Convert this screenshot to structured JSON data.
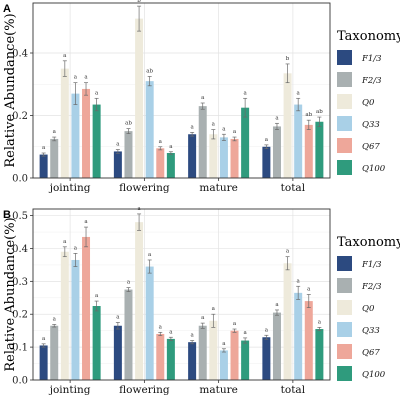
{
  "chart_data": [
    {
      "panel": "A",
      "type": "bar",
      "categories": [
        "jointing",
        "flowering",
        "mature",
        "total"
      ],
      "ylabel": "Relative Abundance(%)",
      "yticks": [
        "0.0",
        "0.2",
        "0.4"
      ],
      "ylim": [
        0,
        0.56
      ],
      "legend_title": "Taxonomy",
      "legend_position": "right",
      "grid": true,
      "series": [
        {
          "name": "F1/3",
          "color": "#2c4a80",
          "values": [
            0.075,
            0.085,
            0.14,
            0.1
          ],
          "errors": [
            0.005,
            0.006,
            0.006,
            0.006
          ],
          "letters": [
            "a",
            "a",
            "a",
            "a"
          ]
        },
        {
          "name": "F2/3",
          "color": "#a9b0b1",
          "values": [
            0.125,
            0.15,
            0.23,
            0.165
          ],
          "errors": [
            0.006,
            0.008,
            0.01,
            0.01
          ],
          "letters": [
            "a",
            "ab",
            "a",
            "a"
          ]
        },
        {
          "name": "Q0",
          "color": "#eeeadb",
          "values": [
            0.35,
            0.51,
            0.14,
            0.335
          ],
          "errors": [
            0.025,
            0.04,
            0.015,
            0.03
          ],
          "letters": [
            "a",
            "b",
            "a",
            "b"
          ]
        },
        {
          "name": "Q33",
          "color": "#a9d0e7",
          "values": [
            0.27,
            0.31,
            0.13,
            0.235
          ],
          "errors": [
            0.035,
            0.015,
            0.01,
            0.02
          ],
          "letters": [
            "a",
            "ab",
            "a",
            "a"
          ]
        },
        {
          "name": "Q67",
          "color": "#eea79a",
          "values": [
            0.285,
            0.095,
            0.125,
            0.17
          ],
          "errors": [
            0.02,
            0.005,
            0.006,
            0.015
          ],
          "letters": [
            "a",
            "a",
            "a",
            "ab"
          ]
        },
        {
          "name": "Q100",
          "color": "#2f9b7d",
          "values": [
            0.235,
            0.08,
            0.225,
            0.18
          ],
          "errors": [
            0.02,
            0.004,
            0.03,
            0.015
          ],
          "letters": [
            "a",
            "a",
            "a",
            "ab"
          ]
        }
      ]
    },
    {
      "panel": "B",
      "type": "bar",
      "categories": [
        "jointing",
        "flowering",
        "mature",
        "total"
      ],
      "ylabel": "Relative Abundance(%)",
      "yticks": [
        "0.0",
        "0.1",
        "0.2",
        "0.3",
        "0.4",
        "0.5"
      ],
      "ylim": [
        0,
        0.52
      ],
      "legend_title": "Taxonomy",
      "legend_position": "right",
      "grid": true,
      "series": [
        {
          "name": "F1/3",
          "color": "#2c4a80",
          "values": [
            0.105,
            0.165,
            0.115,
            0.13
          ],
          "errors": [
            0.005,
            0.01,
            0.005,
            0.006
          ],
          "letters": [
            "a",
            "a",
            "a",
            "a"
          ]
        },
        {
          "name": "F2/3",
          "color": "#a9b0b1",
          "values": [
            0.165,
            0.275,
            0.165,
            0.205
          ],
          "errors": [
            0.004,
            0.006,
            0.008,
            0.008
          ],
          "letters": [
            "a",
            "a",
            "a",
            "a"
          ]
        },
        {
          "name": "Q0",
          "color": "#eeeadb",
          "values": [
            0.39,
            0.48,
            0.18,
            0.355
          ],
          "errors": [
            0.015,
            0.025,
            0.02,
            0.02
          ],
          "letters": [
            "a",
            "a",
            "a",
            "a"
          ]
        },
        {
          "name": "Q33",
          "color": "#a9d0e7",
          "values": [
            0.365,
            0.345,
            0.09,
            0.265
          ],
          "errors": [
            0.02,
            0.02,
            0.005,
            0.02
          ],
          "letters": [
            "a",
            "a",
            "a",
            "a"
          ]
        },
        {
          "name": "Q67",
          "color": "#eea79a",
          "values": [
            0.435,
            0.14,
            0.15,
            0.24
          ],
          "errors": [
            0.03,
            0.005,
            0.005,
            0.02
          ],
          "letters": [
            "a",
            "a",
            "a",
            "a"
          ]
        },
        {
          "name": "Q100",
          "color": "#2f9b7d",
          "values": [
            0.225,
            0.125,
            0.12,
            0.155
          ],
          "errors": [
            0.015,
            0.005,
            0.008,
            0.005
          ],
          "letters": [
            "a",
            "a",
            "a",
            "a"
          ]
        }
      ]
    }
  ]
}
